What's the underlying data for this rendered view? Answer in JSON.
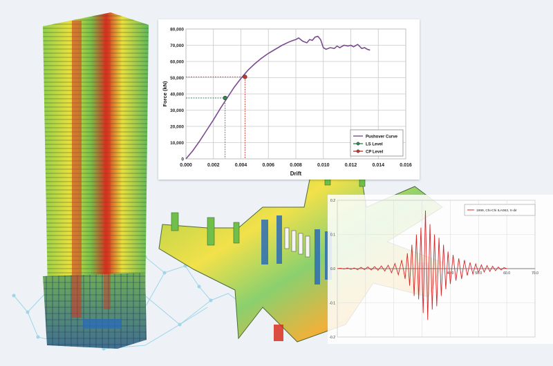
{
  "colors": {
    "background": "#eef2f6",
    "pushover_curve": "#7a4a8f",
    "ls_level": "#2e8b57",
    "cp_level": "#c0392b",
    "accel_trace": "#d62728",
    "model_red": "#d7301f",
    "model_yellow": "#f2e14a",
    "model_green": "#79c24a",
    "model_blue": "#2c6db5"
  },
  "illustrations": {
    "tower_model": "high-rise-building-stress-model",
    "floor_model": "core-wall-floor-plate-stress-model",
    "network": "network-node-lines-decoration"
  },
  "chart_data": [
    {
      "type": "line",
      "title": "",
      "xlabel": "Drift",
      "ylabel": "Force (kN)",
      "xlim": [
        0,
        0.016
      ],
      "ylim": [
        0,
        80000
      ],
      "x_ticks": [
        "0.000",
        "0.002",
        "0.004",
        "0.006",
        "0.008",
        "0.010",
        "0.012",
        "0.014",
        "0.016"
      ],
      "y_ticks": [
        "0",
        "10,000",
        "20,000",
        "30,000",
        "40,000",
        "50,000",
        "60,000",
        "70,000",
        "80,000"
      ],
      "grid": true,
      "legend_position": "bottom-right",
      "series": [
        {
          "name": "Pushover Curve",
          "x": [
            0,
            0.0005,
            0.001,
            0.0015,
            0.002,
            0.0025,
            0.003,
            0.0035,
            0.004,
            0.0045,
            0.005,
            0.0055,
            0.006,
            0.0065,
            0.007,
            0.0075,
            0.0078,
            0.008,
            0.0082,
            0.0085,
            0.0088,
            0.009,
            0.0092,
            0.0094,
            0.0096,
            0.0098,
            0.01,
            0.0102,
            0.0105,
            0.0108,
            0.011,
            0.0112,
            0.0115,
            0.0118,
            0.012,
            0.0122,
            0.0125,
            0.0128,
            0.013,
            0.0132,
            0.0134
          ],
          "y": [
            0,
            5000,
            11000,
            17500,
            24000,
            31000,
            37500,
            44000,
            49500,
            54500,
            58500,
            62000,
            65000,
            67500,
            70000,
            72000,
            73000,
            73500,
            74500,
            72500,
            71500,
            73500,
            73000,
            75000,
            75500,
            73500,
            68500,
            67500,
            68500,
            68000,
            69500,
            68500,
            70000,
            69500,
            70000,
            69000,
            70500,
            68000,
            68500,
            67500,
            67000
          ]
        },
        {
          "name": "LS Level",
          "x": [
            0.00285
          ],
          "y": [
            37500
          ]
        },
        {
          "name": "CP Level",
          "x": [
            0.0043
          ],
          "y": [
            50500
          ]
        }
      ]
    },
    {
      "type": "line",
      "title": "",
      "xlabel": "",
      "ylabel": "",
      "xlim": [
        0,
        70
      ],
      "ylim": [
        -0.2,
        0.2
      ],
      "x_ticks": [
        "40.0",
        "50.0",
        "60.0",
        "70.0"
      ],
      "y_ticks": [
        "0.2",
        "0.1",
        "0.0",
        "-0.1",
        "-0.2"
      ],
      "grid": true,
      "legend_position": "top-right",
      "series": [
        {
          "name": "1999, Chi-Chi ILA063, X-dir",
          "x": [
            0,
            1.2,
            2.4,
            3.6,
            4.8,
            6,
            7.2,
            8.4,
            9.6,
            10.8,
            12,
            13.2,
            14.4,
            15.6,
            16.8,
            18,
            19.2,
            20.4,
            21.6,
            22.8,
            24,
            24.8,
            25.6,
            26.4,
            27.2,
            28,
            28.8,
            29.6,
            30.4,
            31.2,
            32,
            32.8,
            33.6,
            34.4,
            35.2,
            36,
            36.8,
            37.6,
            38.4,
            39.2,
            40,
            41,
            42,
            43,
            44,
            45,
            46,
            47,
            48,
            49,
            50,
            51,
            52,
            53,
            54,
            55,
            56,
            57,
            58,
            59,
            60
          ],
          "y": [
            0,
            0.001,
            -0.001,
            0.002,
            -0.002,
            0.002,
            -0.003,
            0.004,
            -0.003,
            0.005,
            -0.004,
            0.006,
            -0.005,
            0.008,
            -0.007,
            0.01,
            -0.012,
            0.015,
            -0.018,
            0.025,
            -0.03,
            0.045,
            -0.05,
            0.07,
            -0.08,
            0.1,
            -0.09,
            0.12,
            -0.13,
            0.17,
            -0.15,
            0.13,
            -0.12,
            0.1,
            -0.11,
            0.09,
            -0.08,
            0.07,
            -0.06,
            0.05,
            -0.045,
            0.04,
            -0.035,
            0.03,
            -0.03,
            0.025,
            -0.02,
            0.018,
            -0.016,
            0.014,
            -0.012,
            0.011,
            -0.01,
            0.009,
            -0.008,
            0.007,
            -0.006,
            0.005,
            -0.004,
            0.003,
            0
          ]
        }
      ]
    }
  ]
}
